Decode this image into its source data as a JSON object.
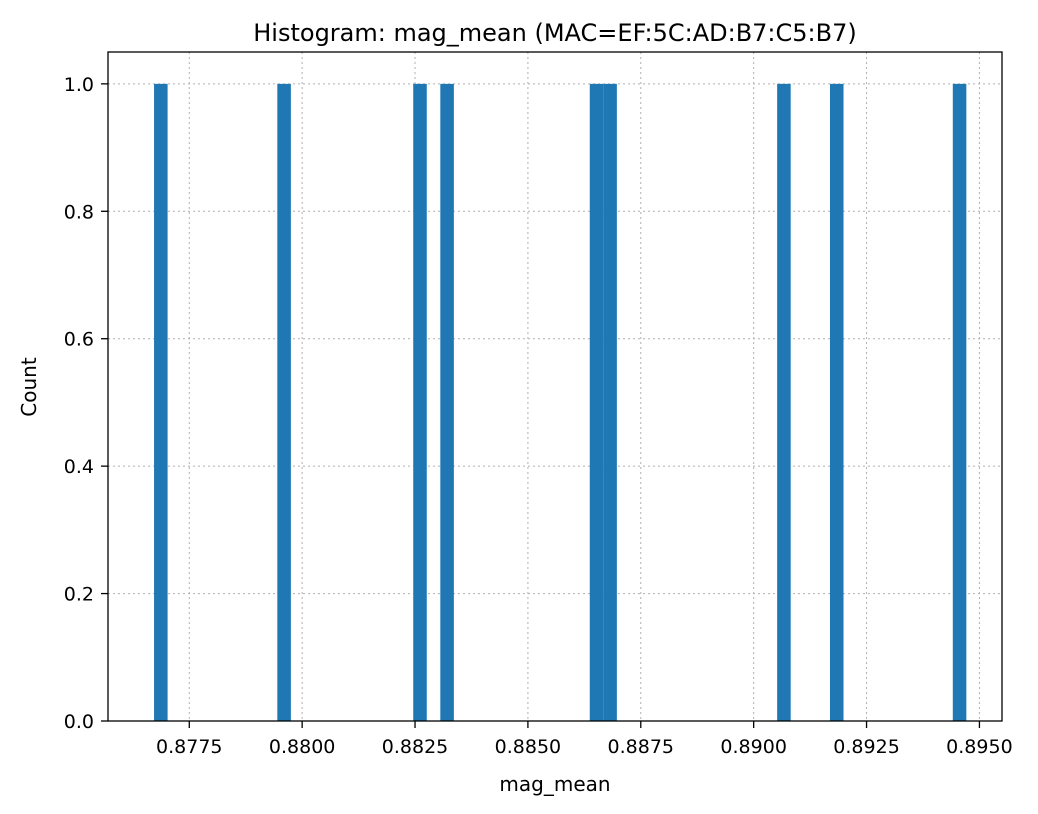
{
  "chart_data": {
    "type": "bar",
    "title": "Histogram: mag_mean (MAC=EF:5C:AD:B7:C5:B7)",
    "xlabel": "mag_mean",
    "ylabel": "Count",
    "xlim": [
      0.8757,
      0.8955
    ],
    "ylim": [
      0.0,
      1.05
    ],
    "xticks": [
      {
        "value": 0.8775,
        "label": "0.8775"
      },
      {
        "value": 0.88,
        "label": "0.8800"
      },
      {
        "value": 0.8825,
        "label": "0.8825"
      },
      {
        "value": 0.885,
        "label": "0.8850"
      },
      {
        "value": 0.8875,
        "label": "0.8875"
      },
      {
        "value": 0.89,
        "label": "0.8900"
      },
      {
        "value": 0.8925,
        "label": "0.8925"
      },
      {
        "value": 0.895,
        "label": "0.8950"
      }
    ],
    "yticks": [
      {
        "value": 0.0,
        "label": "0.0"
      },
      {
        "value": 0.2,
        "label": "0.2"
      },
      {
        "value": 0.4,
        "label": "0.4"
      },
      {
        "value": 0.6,
        "label": "0.6"
      },
      {
        "value": 0.8,
        "label": "0.8"
      },
      {
        "value": 1.0,
        "label": "1.0"
      }
    ],
    "grid": true,
    "bin_width": 0.0003,
    "bars": [
      {
        "x0": 0.87672,
        "x1": 0.87702,
        "count": 1
      },
      {
        "x0": 0.87945,
        "x1": 0.87975,
        "count": 1
      },
      {
        "x0": 0.88246,
        "x1": 0.88276,
        "count": 1
      },
      {
        "x0": 0.88306,
        "x1": 0.88336,
        "count": 1
      },
      {
        "x0": 0.88637,
        "x1": 0.88667,
        "count": 1
      },
      {
        "x0": 0.88667,
        "x1": 0.88697,
        "count": 1
      },
      {
        "x0": 0.89052,
        "x1": 0.89082,
        "count": 1
      },
      {
        "x0": 0.89169,
        "x1": 0.89199,
        "count": 1
      },
      {
        "x0": 0.89441,
        "x1": 0.89471,
        "count": 1
      }
    ],
    "color": "#1f77b4"
  }
}
